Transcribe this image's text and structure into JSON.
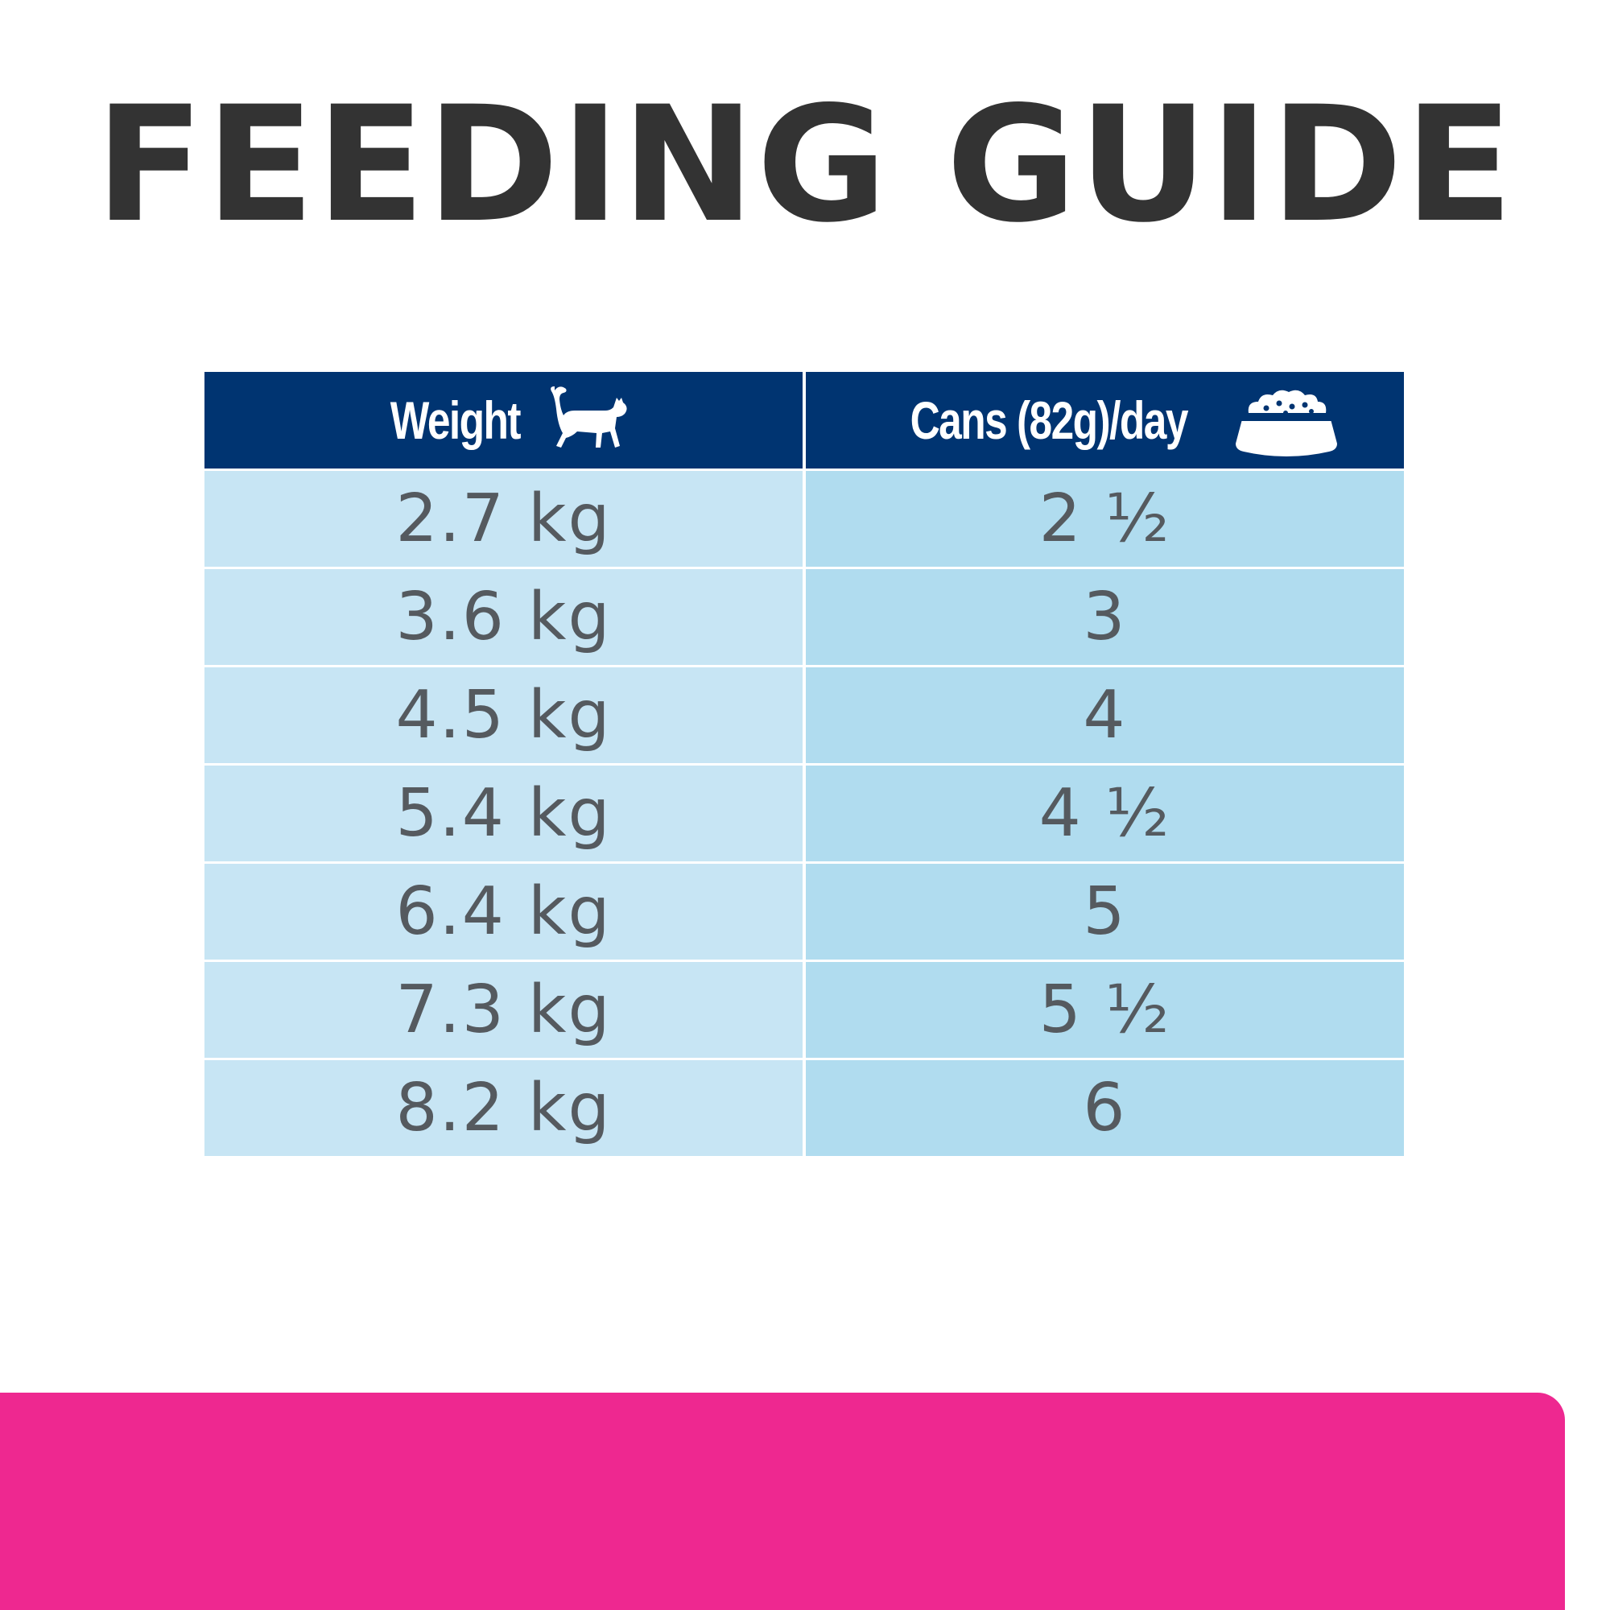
{
  "title": "FEEDING GUIDE",
  "colors": {
    "title": "#333333",
    "header_bg": "#003471",
    "weight_col_bg": "#c7e5f4",
    "cans_col_bg": "#b0dcef",
    "row_text": "#555a5f",
    "pink_band": "#ee2890"
  },
  "table": {
    "headers": {
      "weight": "Weight",
      "weight_icon": "cat-icon",
      "cans": "Cans (82g)/day",
      "cans_icon": "food-bowl-icon"
    },
    "rows": [
      {
        "weight": "2.7 kg",
        "cans": "2 ½"
      },
      {
        "weight": "3.6 kg",
        "cans": "3"
      },
      {
        "weight": "4.5 kg",
        "cans": "4"
      },
      {
        "weight": "5.4 kg",
        "cans": "4 ½"
      },
      {
        "weight": "6.4 kg",
        "cans": "5"
      },
      {
        "weight": "7.3 kg",
        "cans": "5 ½"
      },
      {
        "weight": "8.2 kg",
        "cans": "6"
      }
    ]
  }
}
